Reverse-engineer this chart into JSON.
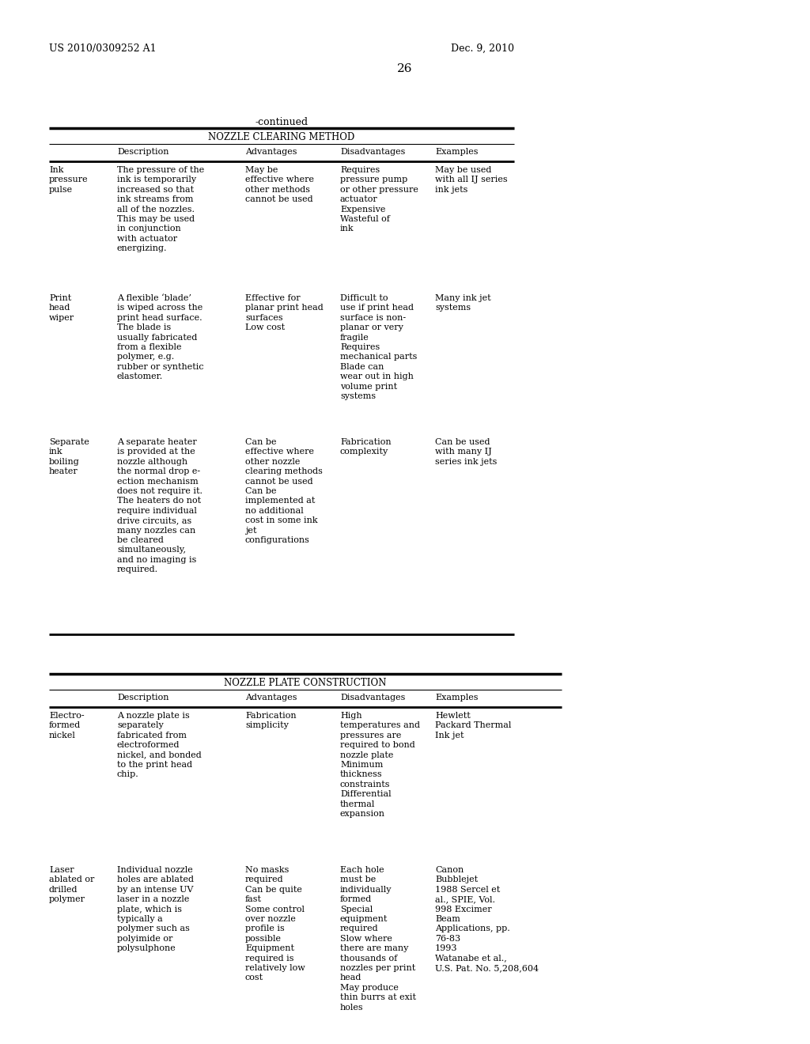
{
  "page_header_left": "US 2010/0309252 A1",
  "page_header_right": "Dec. 9, 2010",
  "page_number": "26",
  "continued_label": "-continued",
  "table1_title": "NOZZLE CLEARING METHOD",
  "table2_title": "NOZZLE PLATE CONSTRUCTION",
  "col_headers": [
    "",
    "Description",
    "Advantages",
    "Disadvantages",
    "Examples"
  ],
  "table1_rows": [
    {
      "col0": "Ink\npressure\npulse",
      "col1": "The pressure of the\nink is temporarily\nincreased so that\nink streams from\nall of the nozzles.\nThis may be used\nin conjunction\nwith actuator\nenergizing.",
      "col2": "May be\neffective where\nother methods\ncannot be used",
      "col3": "Requires\npressure pump\nor other pressure\nactuator\nExpensive\nWasteful of\nink",
      "col4": "May be used\nwith all IJ series\nink jets"
    },
    {
      "col0": "Print\nhead\nwiper",
      "col1": "A flexible ‘blade’\nis wiped across the\nprint head surface.\nThe blade is\nusually fabricated\nfrom a flexible\npolymer, e.g.\nrubber or synthetic\nelastomer.",
      "col2": "Effective for\nplanar print head\nsurfaces\nLow cost",
      "col3": "Difficult to\nuse if print head\nsurface is non-\nplanar or very\nfragile\nRequires\nmechanical parts\nBlade can\nwear out in high\nvolume print\nsystems",
      "col4": "Many ink jet\nsystems"
    },
    {
      "col0": "Separate\nink\nboiling\nheater",
      "col1": "A separate heater\nis provided at the\nnozzle although\nthe normal drop e-\nection mechanism\ndoes not require it.\nThe heaters do not\nrequire individual\ndrive circuits, as\nmany nozzles can\nbe cleared\nsimultaneously,\nand no imaging is\nrequired.",
      "col2": "Can be\neffective where\nother nozzle\nclearing methods\ncannot be used\nCan be\nimplemented at\nno additional\ncost in some ink\njet\nconfigurations",
      "col3": "Fabrication\ncomplexity",
      "col4": "Can be used\nwith many IJ\nseries ink jets"
    }
  ],
  "table2_rows": [
    {
      "col0": "Electro-\nformed\nnickel",
      "col1": "A nozzle plate is\nseparately\nfabricated from\nelectroformed\nnickel, and bonded\nto the print head\nchip.",
      "col2": "Fabrication\nsimplicity",
      "col3": "High\ntemperatures and\npressures are\nrequired to bond\nnozzle plate\nMinimum\nthickness\nconstraints\nDifferential\nthermal\nexpansion",
      "col4": "Hewlett\nPackard Thermal\nInk jet"
    },
    {
      "col0": "Laser\nablated or\ndrilled\npolymer",
      "col1": "Individual nozzle\nholes are ablated\nby an intense UV\nlaser in a nozzle\nplate, which is\ntypically a\npolymer such as\npolyimide or\npolysulphone",
      "col2": "No masks\nrequired\nCan be quite\nfast\nSome control\nover nozzle\nprofile is\npossible\nEquipment\nrequired is\nrelatively low\ncost",
      "col3": "Each hole\nmust be\nindividually\nformed\nSpecial\nequipment\nrequired\nSlow where\nthere are many\nthousands of\nnozzles per print\nhead\nMay produce\nthin burrs at exit\nholes",
      "col4": "Canon\nBubblejet\n1988 Sercel et\nal., SPIE, Vol.\n998 Excimer\nBeam\nApplications, pp.\n76-83\n1993\nWatanabe et al.,\nU.S. Pat. No. 5,208,604"
    }
  ],
  "bg_color": "#ffffff",
  "text_color": "#000000"
}
